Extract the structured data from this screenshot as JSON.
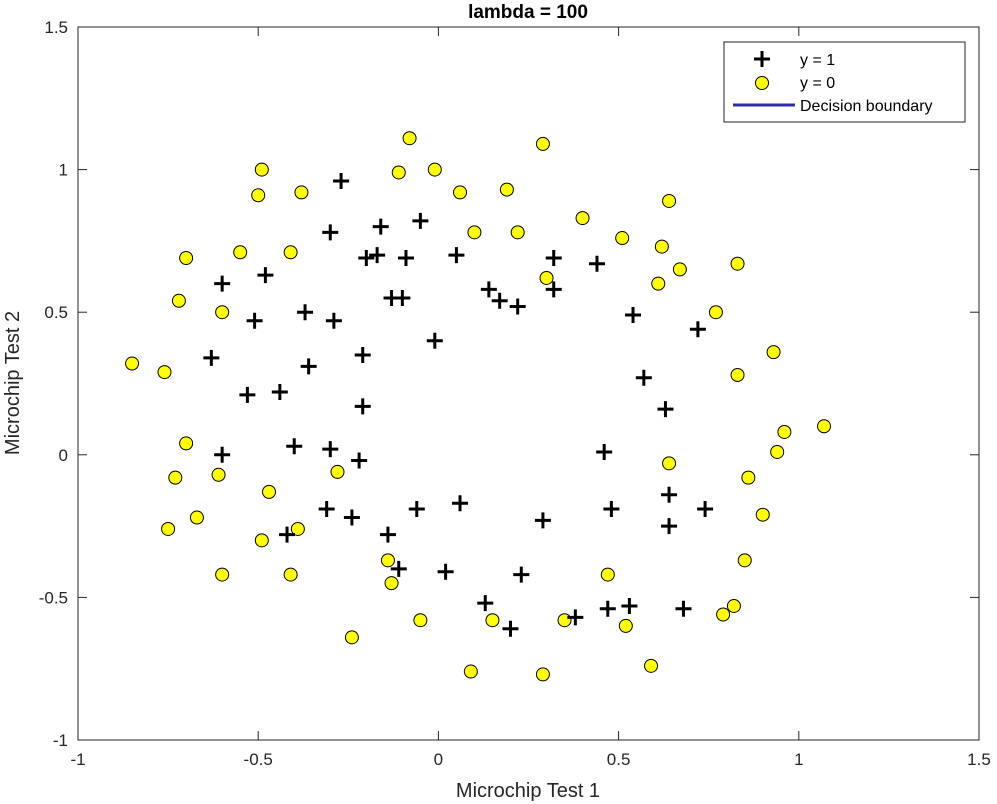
{
  "chart_data": {
    "type": "scatter",
    "title": "lambda = 100",
    "xlabel": "Microchip Test 1",
    "ylabel": "Microchip Test 2",
    "xlim": [
      -1,
      1.5
    ],
    "ylim": [
      -1,
      1.5
    ],
    "xticks": [
      -1,
      -0.5,
      0,
      0.5,
      1,
      1.5
    ],
    "yticks": [
      -1,
      -0.5,
      0,
      0.5,
      1,
      1.5
    ],
    "xtick_labels": [
      "-1",
      "-0.5",
      "0",
      "0.5",
      "1",
      "1.5"
    ],
    "ytick_labels": [
      "-1",
      "-0.5",
      "0",
      "0.5",
      "1",
      "1.5"
    ],
    "grid": false,
    "legend_position": "top-right",
    "legend": {
      "positive_label": "y = 1",
      "negative_label": "y = 0",
      "boundary_label": "Decision boundary"
    },
    "colors": {
      "positive_marker": "#000000",
      "negative_fill": "#ffff00",
      "negative_edge": "#000000",
      "boundary": "#2b2bb5",
      "axes": "#262626"
    },
    "series": [
      {
        "name": "y = 1",
        "marker": "plus",
        "x": [
          -0.27,
          -0.3,
          -0.16,
          -0.05,
          -0.17,
          -0.09,
          -0.2,
          -0.48,
          -0.6,
          -0.51,
          -0.37,
          -0.29,
          -0.13,
          -0.1,
          0.05,
          0.14,
          0.17,
          0.22,
          0.32,
          0.32,
          0.44,
          -0.63,
          -0.36,
          -0.21,
          -0.01,
          -0.53,
          -0.44,
          -0.21,
          -0.4,
          -0.3,
          -0.6,
          -0.22,
          0.54,
          0.57,
          0.63,
          0.72,
          0.46,
          0.64,
          0.48,
          0.64,
          0.74,
          0.06,
          -0.06,
          -0.31,
          -0.24,
          -0.14,
          -0.42,
          -0.11,
          0.02,
          0.23,
          0.29,
          0.13,
          0.2,
          0.38,
          0.47,
          0.53,
          0.68
        ],
        "y": [
          0.96,
          0.78,
          0.8,
          0.82,
          0.7,
          0.69,
          0.69,
          0.63,
          0.6,
          0.47,
          0.5,
          0.47,
          0.55,
          0.55,
          0.7,
          0.58,
          0.54,
          0.52,
          0.58,
          0.69,
          0.67,
          0.34,
          0.31,
          0.35,
          0.4,
          0.21,
          0.22,
          0.17,
          0.03,
          0.02,
          0.0,
          -0.02,
          0.49,
          0.27,
          0.16,
          0.44,
          0.01,
          -0.14,
          -0.19,
          -0.25,
          -0.19,
          -0.17,
          -0.19,
          -0.19,
          -0.22,
          -0.28,
          -0.28,
          -0.4,
          -0.41,
          -0.42,
          -0.23,
          -0.52,
          -0.61,
          -0.57,
          -0.54,
          -0.53,
          -0.54
        ]
      },
      {
        "name": "y = 0",
        "marker": "circle",
        "x": [
          -0.08,
          0.29,
          -0.49,
          -0.5,
          -0.38,
          -0.11,
          -0.01,
          0.06,
          0.19,
          0.64,
          0.4,
          0.51,
          0.62,
          0.1,
          0.22,
          -0.55,
          -0.41,
          -0.7,
          -0.72,
          -0.6,
          0.67,
          0.83,
          0.3,
          0.61,
          0.77,
          -0.85,
          -0.76,
          0.93,
          0.83,
          -0.7,
          0.64,
          0.96,
          1.07,
          -0.73,
          -0.61,
          0.94,
          -0.28,
          0.86,
          -0.47,
          -0.67,
          -0.75,
          -0.39,
          -0.49,
          -0.14,
          0.9,
          0.85,
          -0.6,
          -0.41,
          -0.13,
          0.47,
          0.82,
          0.79,
          -0.24,
          -0.05,
          0.15,
          0.35,
          0.52,
          0.59,
          0.09,
          0.29
        ],
        "y": [
          1.11,
          1.09,
          1.0,
          0.91,
          0.92,
          0.99,
          1.0,
          0.92,
          0.93,
          0.89,
          0.83,
          0.76,
          0.73,
          0.78,
          0.78,
          0.71,
          0.71,
          0.69,
          0.54,
          0.5,
          0.65,
          0.67,
          0.62,
          0.6,
          0.5,
          0.32,
          0.29,
          0.36,
          0.28,
          0.04,
          -0.03,
          0.08,
          0.1,
          -0.08,
          -0.07,
          0.01,
          -0.06,
          -0.08,
          -0.13,
          -0.22,
          -0.26,
          -0.26,
          -0.3,
          -0.37,
          -0.21,
          -0.37,
          -0.42,
          -0.42,
          -0.45,
          -0.42,
          -0.53,
          -0.56,
          -0.64,
          -0.58,
          -0.58,
          -0.58,
          -0.6,
          -0.74,
          -0.76,
          -0.77
        ]
      }
    ]
  }
}
